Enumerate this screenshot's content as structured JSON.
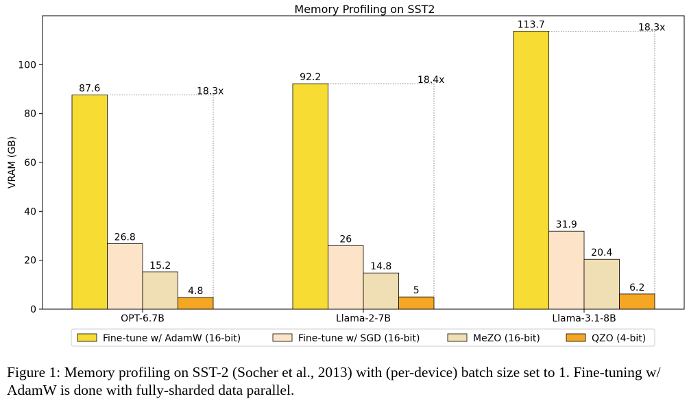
{
  "chart_data": {
    "type": "bar",
    "title": "Memory Profiling on SST2",
    "xlabel": "",
    "ylabel": "VRAM (GB)",
    "ylim": [
      0,
      120
    ],
    "yticks": [
      0,
      20,
      40,
      60,
      80,
      100
    ],
    "grid": false,
    "legend_position": "bottom",
    "categories": [
      "OPT-6.7B",
      "Llama-2-7B",
      "Llama-3.1-8B"
    ],
    "series": [
      {
        "name": "Fine-tune w/ AdamW (16-bit)",
        "color": "#f7dc34",
        "values": [
          87.6,
          92.2,
          113.7
        ],
        "labels": [
          "87.6",
          "92.2",
          "113.7"
        ]
      },
      {
        "name": "Fine-tune w/ SGD (16-bit)",
        "color": "#fde4c8",
        "values": [
          26.8,
          26,
          31.9
        ],
        "labels": [
          "26.8",
          "26",
          "31.9"
        ]
      },
      {
        "name": "MeZO (16-bit)",
        "color": "#f0deb4",
        "values": [
          15.2,
          14.8,
          20.4
        ],
        "labels": [
          "15.2",
          "14.8",
          "20.4"
        ]
      },
      {
        "name": "QZO (4-bit)",
        "color": "#f5a623",
        "values": [
          4.8,
          5,
          6.2
        ],
        "labels": [
          "4.8",
          "5",
          "6.2"
        ]
      }
    ],
    "annotations": [
      {
        "category": "OPT-6.7B",
        "text": "18.3x",
        "from_value": 87.6
      },
      {
        "category": "Llama-2-7B",
        "text": "18.4x",
        "from_value": 92.2
      },
      {
        "category": "Llama-3.1-8B",
        "text": "18.3x",
        "from_value": 113.7
      }
    ]
  },
  "caption": {
    "line1": "Figure 1: Memory profiling on SST-2 (Socher et al., 2013) with (per-device) batch size set to 1. Fine-tuning w/",
    "line2": "AdamW is done with fully-sharded data parallel."
  }
}
